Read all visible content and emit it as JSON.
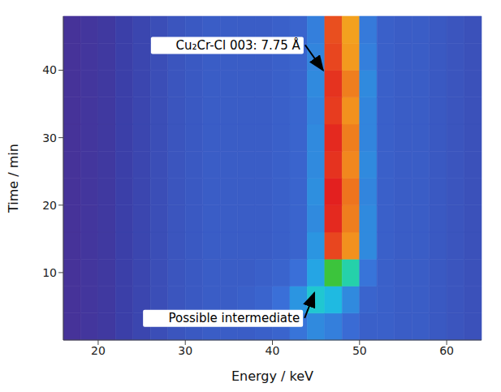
{
  "chart_data": {
    "type": "heatmap",
    "x_label": "Energy / keV",
    "y_label": "Time / min",
    "x": [
      17,
      19,
      21,
      23,
      25,
      27,
      29,
      31,
      33,
      35,
      37,
      39,
      41,
      43,
      45,
      47,
      49,
      51,
      53,
      55,
      57,
      59,
      61,
      63
    ],
    "y": [
      2,
      6,
      10,
      14,
      18,
      22,
      26,
      30,
      34,
      38,
      42,
      46
    ],
    "cells": [
      [
        8,
        9,
        10,
        12,
        14,
        16,
        18,
        19,
        20,
        20,
        20,
        21,
        22,
        26,
        30,
        28,
        24,
        21,
        21,
        20,
        20,
        19,
        18,
        17
      ],
      [
        8,
        9,
        10,
        12,
        14,
        16,
        18,
        19,
        20,
        20,
        21,
        22,
        25,
        32,
        45,
        40,
        30,
        22,
        21,
        20,
        20,
        19,
        18,
        17
      ],
      [
        8,
        9,
        10,
        12,
        14,
        16,
        18,
        19,
        20,
        20,
        20,
        21,
        22,
        25,
        35,
        62,
        52,
        26,
        21,
        20,
        20,
        19,
        18,
        17
      ],
      [
        8,
        9,
        10,
        12,
        14,
        16,
        18,
        19,
        20,
        20,
        20,
        20,
        21,
        22,
        32,
        96,
        88,
        30,
        21,
        20,
        20,
        19,
        18,
        17
      ],
      [
        8,
        9,
        10,
        12,
        14,
        16,
        18,
        19,
        20,
        20,
        20,
        20,
        21,
        22,
        30,
        99,
        90,
        30,
        21,
        20,
        20,
        19,
        18,
        17
      ],
      [
        8,
        9,
        10,
        12,
        14,
        16,
        18,
        19,
        20,
        20,
        20,
        20,
        21,
        22,
        31,
        100,
        91,
        29,
        21,
        20,
        20,
        19,
        18,
        17
      ],
      [
        8,
        9,
        10,
        12,
        14,
        16,
        18,
        19,
        20,
        20,
        20,
        20,
        21,
        22,
        30,
        98,
        89,
        30,
        21,
        20,
        20,
        19,
        18,
        17
      ],
      [
        8,
        9,
        10,
        12,
        14,
        16,
        18,
        19,
        20,
        20,
        20,
        20,
        21,
        22,
        30,
        99,
        90,
        29,
        21,
        20,
        20,
        19,
        18,
        17
      ],
      [
        8,
        9,
        10,
        12,
        14,
        16,
        18,
        19,
        20,
        20,
        20,
        20,
        21,
        22,
        29,
        97,
        88,
        29,
        21,
        20,
        20,
        19,
        18,
        17
      ],
      [
        8,
        9,
        10,
        12,
        14,
        16,
        18,
        19,
        20,
        20,
        20,
        20,
        21,
        22,
        30,
        98,
        90,
        30,
        21,
        20,
        20,
        19,
        18,
        17
      ],
      [
        8,
        9,
        10,
        12,
        14,
        16,
        18,
        19,
        20,
        20,
        20,
        20,
        21,
        22,
        29,
        96,
        87,
        28,
        21,
        20,
        20,
        19,
        18,
        17
      ],
      [
        8,
        9,
        10,
        12,
        14,
        16,
        18,
        19,
        20,
        20,
        20,
        20,
        21,
        22,
        28,
        95,
        86,
        27,
        21,
        20,
        20,
        19,
        18,
        17
      ]
    ],
    "zlim": [
      0,
      100
    ],
    "xlim": [
      16,
      64
    ],
    "ylim": [
      0,
      48
    ],
    "xticks": [
      20,
      30,
      40,
      50,
      60
    ],
    "yticks": [
      10,
      20,
      30,
      40
    ],
    "grid": false,
    "annotations": [
      {
        "text": "Cu₂Cr-Cl 003: 7.75 Å",
        "x": 46,
        "y": 40
      },
      {
        "text": "Possible intermediate",
        "x": 45,
        "y": 7
      }
    ]
  }
}
